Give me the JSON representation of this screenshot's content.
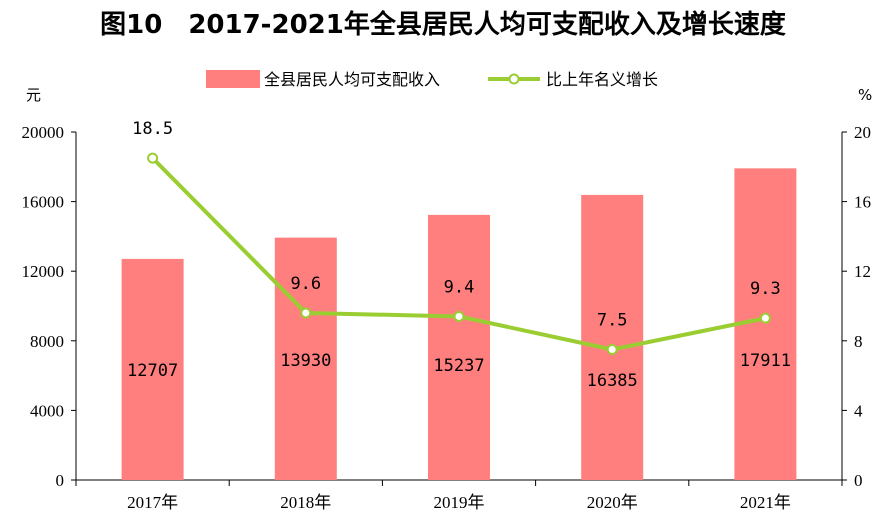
{
  "chart_data": {
    "type": "bar+line",
    "title": "图10　2017-2021年全县居民人均可支配收入及增长速度",
    "categories": [
      "2017年",
      "2018年",
      "2019年",
      "2020年",
      "2021年"
    ],
    "series": [
      {
        "name": "全县居民人均可支配收入",
        "type": "bar",
        "axis": "left",
        "values": [
          12707,
          13930,
          15237,
          16385,
          17911
        ],
        "labels": [
          "12707",
          "13930",
          "15237",
          "16385",
          "17911"
        ],
        "color": "#ff7f7f"
      },
      {
        "name": "比上年名义增长",
        "type": "line",
        "axis": "right",
        "values": [
          18.5,
          9.6,
          9.4,
          7.5,
          9.3
        ],
        "labels": [
          "18.5",
          "9.6",
          "9.4",
          "7.5",
          "9.3"
        ],
        "color": "#9acd32"
      }
    ],
    "y_left": {
      "unit": "元",
      "ylim": [
        0,
        20000
      ],
      "ticks": [
        "0",
        "4000",
        "8000",
        "12000",
        "16000",
        "20000"
      ]
    },
    "y_right": {
      "unit": "%",
      "ylim": [
        0,
        20
      ],
      "ticks": [
        "0",
        "4",
        "8",
        "12",
        "16",
        "20"
      ]
    },
    "legend_position": "top",
    "grid": false
  }
}
